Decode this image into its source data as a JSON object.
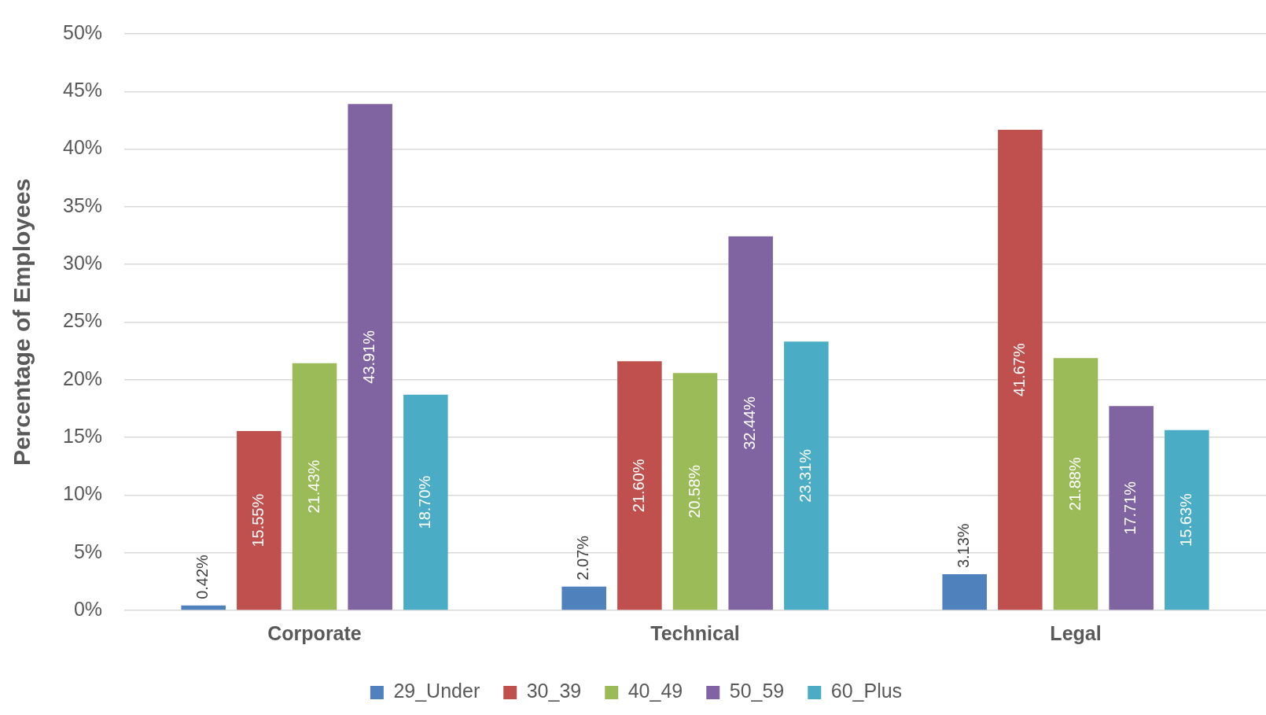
{
  "chart_data": {
    "type": "bar",
    "ylabel": "Percentage of Employees",
    "categories": [
      "Corporate",
      "Technical",
      "Legal"
    ],
    "series": [
      {
        "name": "29_Under",
        "color": "#4f81bd",
        "values": [
          0.42,
          2.07,
          3.13
        ],
        "value_labels": [
          "0.42%",
          "2.07%",
          "3.13%"
        ]
      },
      {
        "name": "30_39",
        "color": "#c0504d",
        "values": [
          15.55,
          21.6,
          41.67
        ],
        "value_labels": [
          "15.55%",
          "21.60%",
          "41.67%"
        ]
      },
      {
        "name": "40_49",
        "color": "#9bbb59",
        "values": [
          21.43,
          20.58,
          21.88
        ],
        "value_labels": [
          "21.43%",
          "20.58%",
          "21.88%"
        ]
      },
      {
        "name": "50_59",
        "color": "#8064a2",
        "values": [
          43.91,
          32.44,
          17.71
        ],
        "value_labels": [
          "43.91%",
          "32.44%",
          "17.71%"
        ]
      },
      {
        "name": "60_Plus",
        "color": "#4bacc6",
        "values": [
          18.7,
          23.31,
          15.63
        ],
        "value_labels": [
          "18.70%",
          "23.31%",
          "15.63%"
        ]
      }
    ],
    "ylim": [
      0,
      50
    ],
    "yticks": [
      {
        "value": 0,
        "label": "0%"
      },
      {
        "value": 5,
        "label": "5%"
      },
      {
        "value": 10,
        "label": "10%"
      },
      {
        "value": 15,
        "label": "15%"
      },
      {
        "value": 20,
        "label": "20%"
      },
      {
        "value": 25,
        "label": "25%"
      },
      {
        "value": 30,
        "label": "30%"
      },
      {
        "value": 35,
        "label": "35%"
      },
      {
        "value": 40,
        "label": "40%"
      },
      {
        "value": 45,
        "label": "45%"
      },
      {
        "value": 50,
        "label": "50%"
      }
    ],
    "grid": "y",
    "legend": "bottom"
  }
}
